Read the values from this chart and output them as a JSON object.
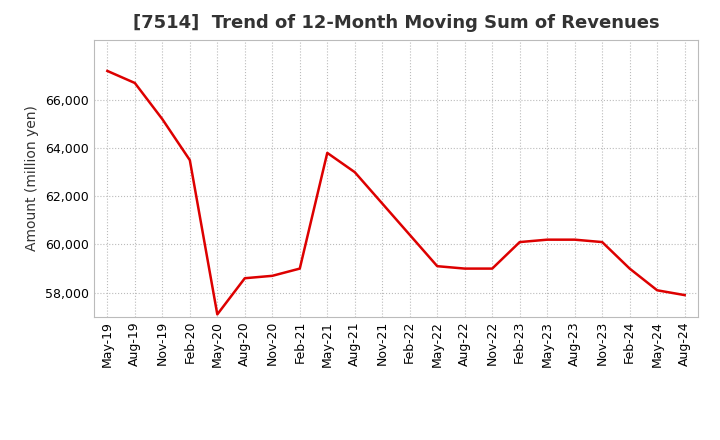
{
  "title": "[7514]  Trend of 12-Month Moving Sum of Revenues",
  "ylabel": "Amount (million yen)",
  "line_color": "#dd0000",
  "background_color": "#ffffff",
  "grid_color": "#bbbbbb",
  "x_labels": [
    "May-19",
    "Aug-19",
    "Nov-19",
    "Feb-20",
    "May-20",
    "Aug-20",
    "Nov-20",
    "Feb-21",
    "May-21",
    "Aug-21",
    "Nov-21",
    "Feb-22",
    "May-22",
    "Aug-22",
    "Nov-22",
    "Feb-23",
    "May-23",
    "Aug-23",
    "Nov-23",
    "Feb-24",
    "May-24",
    "Aug-24"
  ],
  "y_values": [
    67200,
    66700,
    65200,
    63500,
    57100,
    58600,
    58700,
    59000,
    63800,
    63000,
    61700,
    60400,
    59100,
    59000,
    59000,
    60100,
    60200,
    60200,
    60100,
    59000,
    58100,
    57900
  ],
  "ylim_min": 57000,
  "ylim_max": 68500,
  "yticks": [
    58000,
    60000,
    62000,
    64000,
    66000
  ],
  "title_fontsize": 13,
  "axis_fontsize": 10,
  "tick_fontsize": 9,
  "title_color": "#333333"
}
